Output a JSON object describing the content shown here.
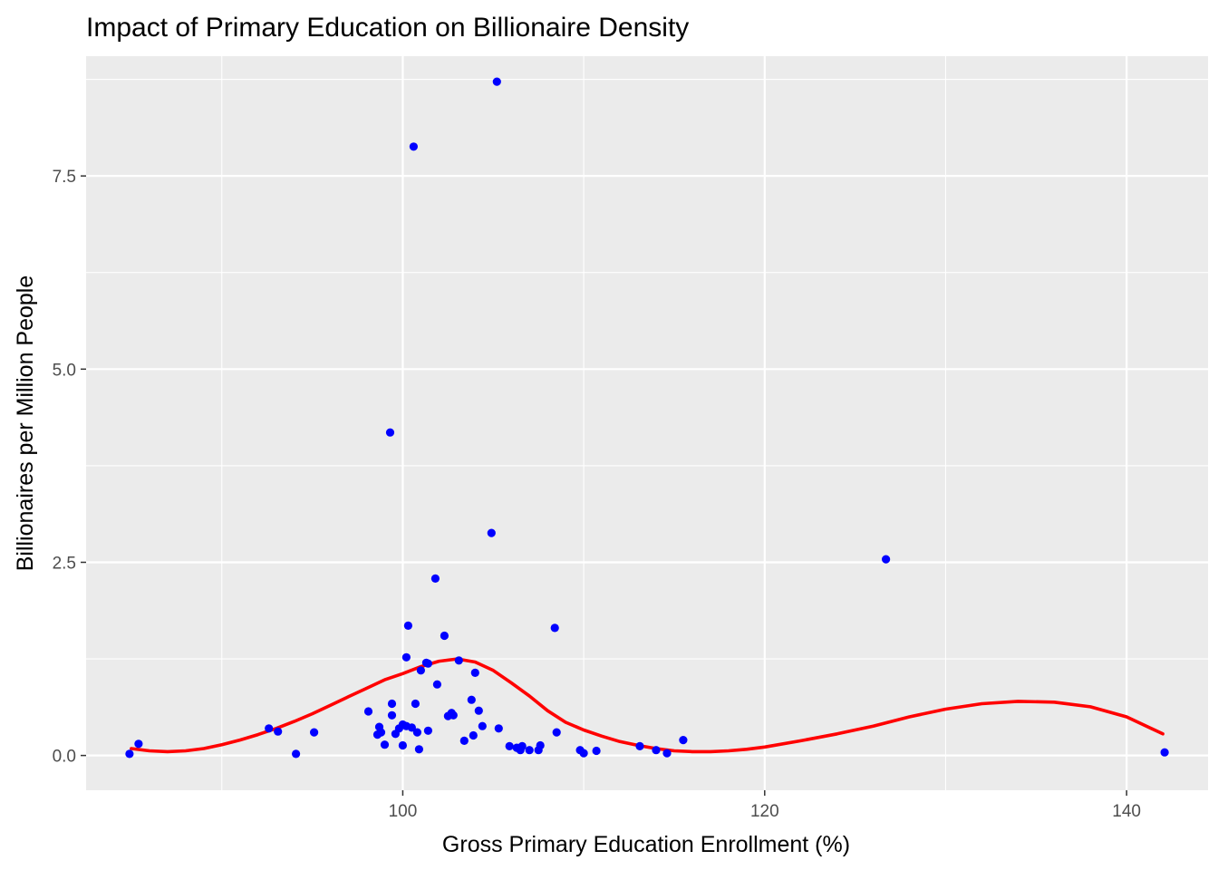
{
  "chart_data": {
    "type": "scatter",
    "title": "Impact of Primary Education on Billionaire Density",
    "xlabel": "Gross Primary Education Enrollment (%)",
    "ylabel": "Billionaires per Million People",
    "xlim": [
      82.5,
      144.5
    ],
    "ylim": [
      -0.45,
      9.05
    ],
    "x_ticks": [
      100,
      120,
      140
    ],
    "x_tick_labels": [
      "100",
      "120",
      "140"
    ],
    "y_ticks": [
      0,
      2.5,
      5,
      7.5
    ],
    "y_tick_labels": [
      "0.0",
      "2.5",
      "5.0",
      "7.5"
    ],
    "grid": true,
    "legend": "none",
    "point_color": "#0000ff",
    "smooth_color": "#ff0000",
    "panel_color": "#ebebeb",
    "points": [
      {
        "x": 84.9,
        "y": 0.02
      },
      {
        "x": 85.4,
        "y": 0.15
      },
      {
        "x": 92.6,
        "y": 0.35
      },
      {
        "x": 93.1,
        "y": 0.31
      },
      {
        "x": 94.1,
        "y": 0.02
      },
      {
        "x": 95.1,
        "y": 0.3
      },
      {
        "x": 98.1,
        "y": 0.57
      },
      {
        "x": 98.6,
        "y": 0.27
      },
      {
        "x": 98.7,
        "y": 0.37
      },
      {
        "x": 98.8,
        "y": 0.3
      },
      {
        "x": 99.0,
        "y": 0.14
      },
      {
        "x": 99.3,
        "y": 4.18
      },
      {
        "x": 99.4,
        "y": 0.52
      },
      {
        "x": 99.4,
        "y": 0.67
      },
      {
        "x": 99.6,
        "y": 0.28
      },
      {
        "x": 99.8,
        "y": 0.35
      },
      {
        "x": 100.0,
        "y": 0.4
      },
      {
        "x": 100.0,
        "y": 0.13
      },
      {
        "x": 100.2,
        "y": 1.27
      },
      {
        "x": 100.2,
        "y": 0.38
      },
      {
        "x": 100.3,
        "y": 1.68
      },
      {
        "x": 100.5,
        "y": 0.36
      },
      {
        "x": 100.6,
        "y": 7.88
      },
      {
        "x": 100.7,
        "y": 0.67
      },
      {
        "x": 100.8,
        "y": 0.3
      },
      {
        "x": 100.9,
        "y": 0.08
      },
      {
        "x": 101.0,
        "y": 1.1
      },
      {
        "x": 101.3,
        "y": 1.2
      },
      {
        "x": 101.4,
        "y": 1.19
      },
      {
        "x": 101.4,
        "y": 0.32
      },
      {
        "x": 101.8,
        "y": 2.29
      },
      {
        "x": 101.9,
        "y": 0.92
      },
      {
        "x": 102.3,
        "y": 1.55
      },
      {
        "x": 102.5,
        "y": 0.51
      },
      {
        "x": 102.7,
        "y": 0.55
      },
      {
        "x": 102.8,
        "y": 0.52
      },
      {
        "x": 103.1,
        "y": 1.23
      },
      {
        "x": 103.4,
        "y": 0.19
      },
      {
        "x": 103.8,
        "y": 0.72
      },
      {
        "x": 103.9,
        "y": 0.26
      },
      {
        "x": 104.0,
        "y": 1.07
      },
      {
        "x": 104.2,
        "y": 0.58
      },
      {
        "x": 104.4,
        "y": 0.38
      },
      {
        "x": 104.9,
        "y": 2.88
      },
      {
        "x": 105.2,
        "y": 8.72
      },
      {
        "x": 105.3,
        "y": 0.35
      },
      {
        "x": 105.9,
        "y": 0.12
      },
      {
        "x": 106.3,
        "y": 0.1
      },
      {
        "x": 106.5,
        "y": 0.07
      },
      {
        "x": 106.6,
        "y": 0.12
      },
      {
        "x": 107.0,
        "y": 0.07
      },
      {
        "x": 107.5,
        "y": 0.07
      },
      {
        "x": 107.6,
        "y": 0.13
      },
      {
        "x": 108.4,
        "y": 1.65
      },
      {
        "x": 108.5,
        "y": 0.3
      },
      {
        "x": 109.8,
        "y": 0.07
      },
      {
        "x": 110.0,
        "y": 0.03
      },
      {
        "x": 110.7,
        "y": 0.06
      },
      {
        "x": 113.1,
        "y": 0.12
      },
      {
        "x": 114.0,
        "y": 0.07
      },
      {
        "x": 114.6,
        "y": 0.03
      },
      {
        "x": 115.5,
        "y": 0.2
      },
      {
        "x": 126.7,
        "y": 2.54
      },
      {
        "x": 142.1,
        "y": 0.04
      }
    ],
    "smooth": {
      "x": [
        85,
        86,
        87,
        88,
        89,
        90,
        91,
        92,
        93,
        94,
        95,
        96,
        97,
        98,
        99,
        100,
        101,
        102,
        103,
        104,
        105,
        106,
        107,
        108,
        109,
        110,
        111,
        112,
        113,
        114,
        115,
        116,
        117,
        118,
        119,
        120,
        122,
        124,
        126,
        128,
        130,
        132,
        134,
        136,
        138,
        140,
        142
      ],
      "y": [
        0.09,
        0.06,
        0.05,
        0.06,
        0.09,
        0.14,
        0.2,
        0.27,
        0.35,
        0.44,
        0.54,
        0.65,
        0.76,
        0.87,
        0.98,
        1.06,
        1.15,
        1.22,
        1.25,
        1.21,
        1.1,
        0.94,
        0.77,
        0.58,
        0.43,
        0.33,
        0.25,
        0.18,
        0.13,
        0.09,
        0.06,
        0.05,
        0.05,
        0.06,
        0.08,
        0.11,
        0.19,
        0.28,
        0.38,
        0.5,
        0.6,
        0.67,
        0.7,
        0.69,
        0.63,
        0.5,
        0.28
      ]
    }
  }
}
